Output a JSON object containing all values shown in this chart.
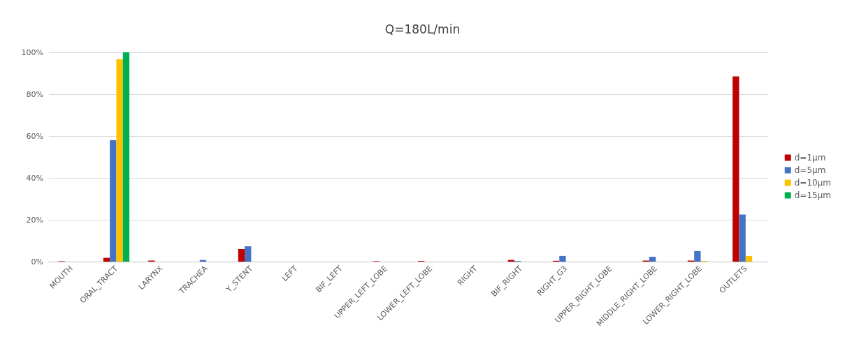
{
  "chart_data": {
    "type": "bar",
    "title": "Q=180L/min",
    "categories": [
      "MOUTH",
      "ORAL_TRACT",
      "LARYNX",
      "TRACHEA",
      "Y_STENT",
      "LEFT",
      "BIF_LEFT",
      "UPPER_LEFT_LOBE",
      "LOWER_LEFT_LOBE",
      "RIGHT",
      "BIF_RIGHT",
      "RIGHT_G3",
      "UPPER_RIGHT_LOBE",
      "MIDDLE_RIGHT_LOBE",
      "LOWER_RIGHT_LOBE",
      "OUTLETS"
    ],
    "series": [
      {
        "name": "d=1µm",
        "color": "#c00000",
        "values": [
          0.2,
          1.8,
          0.5,
          null,
          6,
          0,
          0,
          0.2,
          0.3,
          null,
          0.8,
          0.4,
          null,
          0.5,
          0.5,
          88.5
        ]
      },
      {
        "name": "d=5µm",
        "color": "#4472c4",
        "values": [
          0,
          58,
          null,
          0.8,
          7.3,
          0,
          0,
          0,
          0,
          0,
          0.3,
          2.7,
          0,
          2.3,
          5,
          22.5
        ]
      },
      {
        "name": "d=10µm",
        "color": "#ffc000",
        "values": [
          0,
          96.7,
          0,
          0,
          0,
          0,
          0,
          0,
          0,
          0,
          0,
          0,
          0,
          0,
          0.3,
          2.7
        ]
      },
      {
        "name": "d=15µm",
        "color": "#00b050",
        "values": [
          0,
          100,
          0,
          0,
          0,
          0,
          0,
          0,
          0,
          0,
          0,
          0,
          0,
          0,
          0,
          0
        ]
      }
    ],
    "ylim": [
      0,
      100
    ],
    "yticks": [
      {
        "value": 0,
        "label": "0%"
      },
      {
        "value": 20,
        "label": "20%"
      },
      {
        "value": 40,
        "label": "40%"
      },
      {
        "value": 60,
        "label": "60%"
      },
      {
        "value": 80,
        "label": "80%"
      },
      {
        "value": 100,
        "label": "100%"
      }
    ],
    "grid": "y",
    "legend": "right"
  }
}
